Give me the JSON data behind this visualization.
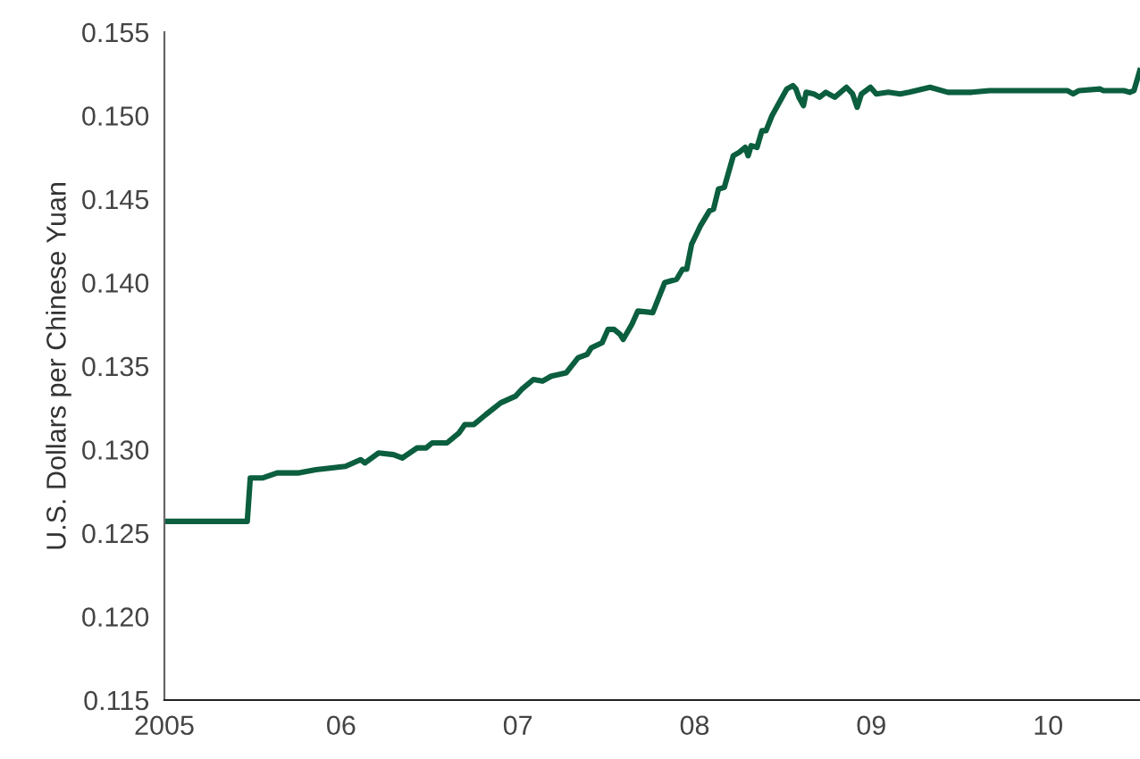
{
  "chart_data": {
    "type": "line",
    "ylabel": "U.S. Dollars per Chinese Yuan",
    "x": [
      2005.0,
      2005.469,
      2005.486,
      2005.554,
      2005.638,
      2005.756,
      2005.857,
      2006.025,
      2006.11,
      2006.134,
      2006.212,
      2006.296,
      2006.346,
      2006.43,
      2006.481,
      2006.515,
      2006.599,
      2006.667,
      2006.7,
      2006.751,
      2006.819,
      2006.903,
      2006.987,
      2007.021,
      2007.088,
      2007.139,
      2007.189,
      2007.274,
      2007.341,
      2007.392,
      2007.416,
      2007.477,
      2007.51,
      2007.544,
      2007.578,
      2007.596,
      2007.645,
      2007.679,
      2007.763,
      2007.831,
      2007.898,
      2007.932,
      2007.955,
      2007.983,
      2008.033,
      2008.084,
      2008.107,
      2008.135,
      2008.168,
      2008.219,
      2008.252,
      2008.286,
      2008.303,
      2008.32,
      2008.353,
      2008.381,
      2008.404,
      2008.438,
      2008.522,
      2008.556,
      2008.573,
      2008.59,
      2008.616,
      2008.631,
      2008.674,
      2008.707,
      2008.742,
      2008.793,
      2008.859,
      2008.894,
      2008.92,
      2008.944,
      2008.995,
      2009.028,
      2009.096,
      2009.163,
      2009.214,
      2009.332,
      2009.433,
      2009.568,
      2009.669,
      2010.108,
      2010.142,
      2010.175,
      2010.294,
      2010.311,
      2010.429,
      2010.462,
      2010.486,
      2010.519
    ],
    "series": [
      {
        "color": "#0b5e3e",
        "values": [
          0.1257,
          0.1257,
          0.1283,
          0.1283,
          0.1286,
          0.1286,
          0.1288,
          0.129,
          0.1294,
          0.1292,
          0.1298,
          0.1297,
          0.1295,
          0.1301,
          0.1301,
          0.1304,
          0.1304,
          0.131,
          0.1315,
          0.1315,
          0.1321,
          0.1328,
          0.1332,
          0.1336,
          0.1342,
          0.1341,
          0.1344,
          0.1346,
          0.1355,
          0.1357,
          0.1361,
          0.1364,
          0.1372,
          0.1372,
          0.1369,
          0.1366,
          0.1375,
          0.1383,
          0.1382,
          0.14,
          0.1402,
          0.1408,
          0.1408,
          0.1423,
          0.1434,
          0.1443,
          0.1444,
          0.1456,
          0.1457,
          0.1476,
          0.1478,
          0.1481,
          0.1476,
          0.1482,
          0.1481,
          0.1491,
          0.1491,
          0.15,
          0.1516,
          0.1518,
          0.1516,
          0.1511,
          0.1506,
          0.1514,
          0.1513,
          0.1511,
          0.1514,
          0.1511,
          0.1517,
          0.1513,
          0.1505,
          0.1513,
          0.1517,
          0.1513,
          0.1514,
          0.1513,
          0.1514,
          0.1517,
          0.1514,
          0.1514,
          0.1515,
          0.1515,
          0.1513,
          0.1515,
          0.1516,
          0.1515,
          0.1515,
          0.1514,
          0.1515,
          0.1527
        ]
      }
    ],
    "xlim": [
      2005,
      2010.52
    ],
    "xticks": [
      {
        "value": 2005,
        "label": "2005"
      },
      {
        "value": 2006,
        "label": "06"
      },
      {
        "value": 2007,
        "label": "07"
      },
      {
        "value": 2008,
        "label": "08"
      },
      {
        "value": 2009,
        "label": "09"
      },
      {
        "value": 2010,
        "label": "10"
      }
    ],
    "ylim": [
      0.115,
      0.155
    ],
    "yticks": [
      {
        "value": 0.115,
        "label": "0.115"
      },
      {
        "value": 0.12,
        "label": "0.120"
      },
      {
        "value": 0.125,
        "label": "0.125"
      },
      {
        "value": 0.13,
        "label": "0.130"
      },
      {
        "value": 0.135,
        "label": "0.135"
      },
      {
        "value": 0.14,
        "label": "0.140"
      },
      {
        "value": 0.145,
        "label": "0.145"
      },
      {
        "value": 0.15,
        "label": "0.150"
      },
      {
        "value": 0.155,
        "label": "0.155"
      }
    ],
    "grid": false,
    "legend": false
  }
}
